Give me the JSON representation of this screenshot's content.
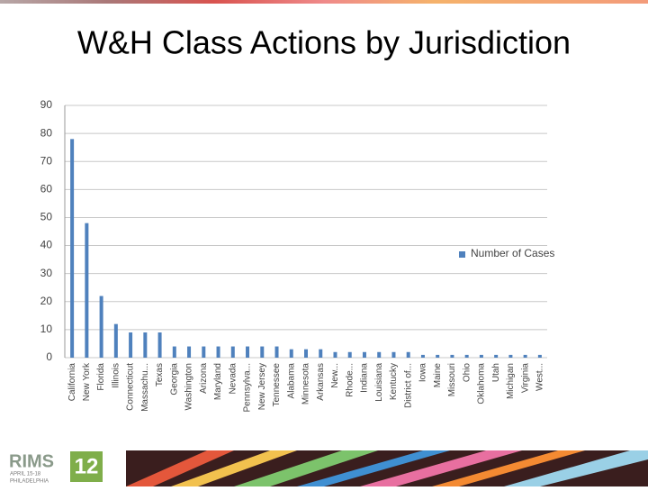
{
  "chart_data": {
    "type": "bar",
    "title": "W&H Class Actions by Jurisdiction",
    "categories": [
      "California",
      "New York",
      "Florida",
      "Illinois",
      "Connecticut",
      "Massachu...",
      "Texas",
      "Georgia",
      "Washington",
      "Arizona",
      "Maryland",
      "Nevada",
      "Pennsylva...",
      "New Jersey",
      "Tennessee",
      "Alabama",
      "Minnesota",
      "Arkansas",
      "New...",
      "Rhode...",
      "Indiana",
      "Louisiana",
      "Kentucky",
      "District of...",
      "Iowa",
      "Maine",
      "Missouri",
      "Ohio",
      "Oklahoma",
      "Utah",
      "Michigan",
      "Virginia",
      "West..."
    ],
    "series": [
      {
        "name": "Number of Cases",
        "color": "#4f81bd",
        "values": [
          78,
          48,
          22,
          12,
          9,
          9,
          9,
          4,
          4,
          4,
          4,
          4,
          4,
          4,
          4,
          3,
          3,
          3,
          2,
          2,
          2,
          2,
          2,
          2,
          1,
          1,
          1,
          1,
          1,
          1,
          1,
          1,
          1
        ]
      }
    ],
    "ylim": [
      0,
      90
    ],
    "yticks": [
      0,
      10,
      20,
      30,
      40,
      50,
      60,
      70,
      80,
      90
    ],
    "grid": true,
    "legend": "right"
  },
  "footer": {
    "logo": "RIMS",
    "edition": "12",
    "dates": "APRIL 15-18",
    "city": "PHILADELPHIA"
  }
}
